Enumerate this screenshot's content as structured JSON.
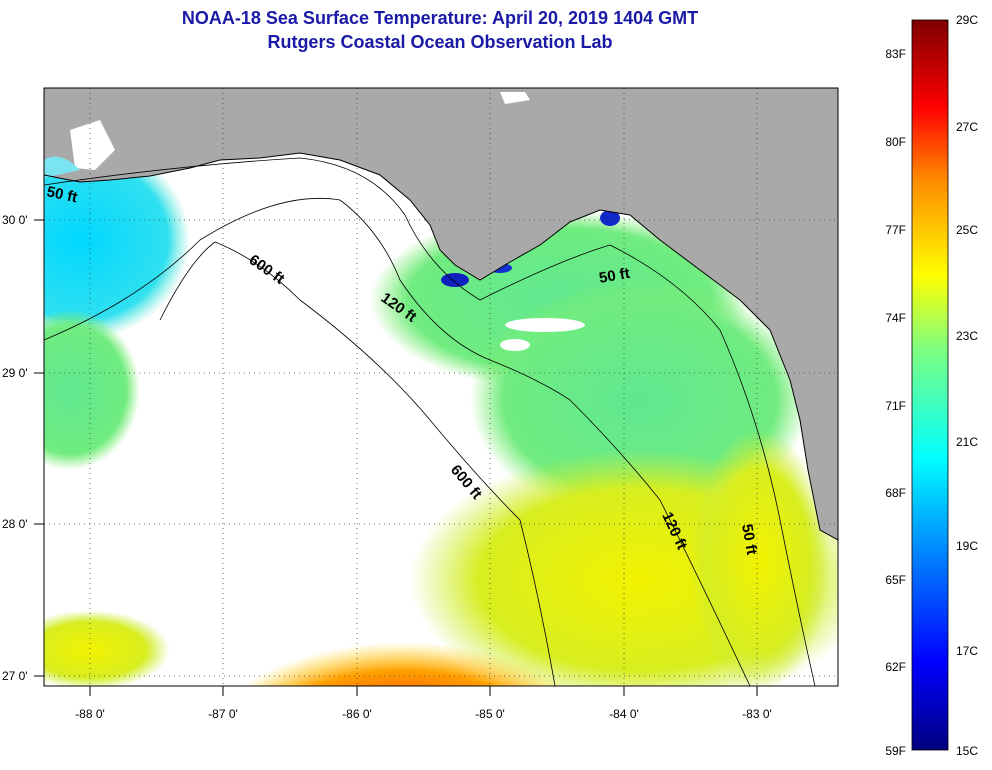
{
  "header": {
    "title": "NOAA-18 Sea Surface Temperature:  April 20, 2019 1404 GMT",
    "subtitle": "Rutgers Coastal Ocean Observation Lab"
  },
  "axes": {
    "lon_ticks": [
      "-88 0'",
      "-87 0'",
      "-86 0'",
      "-85 0'",
      "-84 0'",
      "-83 0'"
    ],
    "lat_ticks": [
      "30 0'",
      "29 0'",
      "28 0'",
      "27 0'"
    ]
  },
  "contours": {
    "labels": [
      "50 ft",
      "600 ft",
      "120 ft",
      "50 ft",
      "600 ft",
      "120 ft",
      "50 ft"
    ]
  },
  "colorbar": {
    "fahrenheit": [
      "83F",
      "80F",
      "77F",
      "74F",
      "71F",
      "68F",
      "65F",
      "62F",
      "59F"
    ],
    "celsius": [
      "29C",
      "27C",
      "25C",
      "23C",
      "21C",
      "19C",
      "17C",
      "15C"
    ]
  },
  "colors": {
    "land": "#a9a9a9",
    "cloud": "#ffffff",
    "title": "#1a1aa6"
  }
}
